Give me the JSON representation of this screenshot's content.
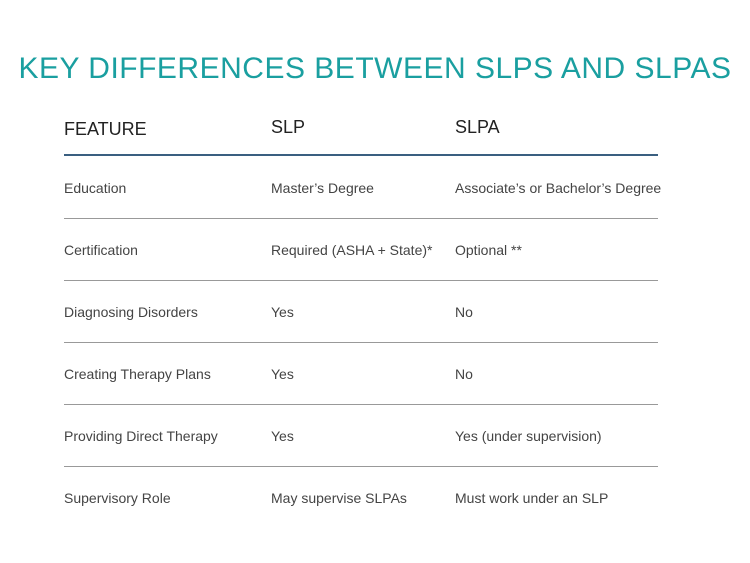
{
  "title": "KEY DIFFERENCES BETWEEN SLPS AND SLPAS",
  "table": {
    "headers": [
      "FEATURE",
      "SLP",
      "SLPA"
    ],
    "rows": [
      [
        "Education",
        "Master’s Degree",
        "Associate’s or Bachelor’s Degree"
      ],
      [
        "Certification",
        "Required (ASHA + State)*",
        "Optional **"
      ],
      [
        "Diagnosing Disorders",
        "Yes",
        "No"
      ],
      [
        "Creating Therapy Plans",
        "Yes",
        "No"
      ],
      [
        "Providing Direct Therapy",
        "Yes",
        "Yes (under supervision)"
      ],
      [
        "Supervisory Role",
        "May supervise SLPAs",
        "Must work under an SLP"
      ]
    ]
  }
}
